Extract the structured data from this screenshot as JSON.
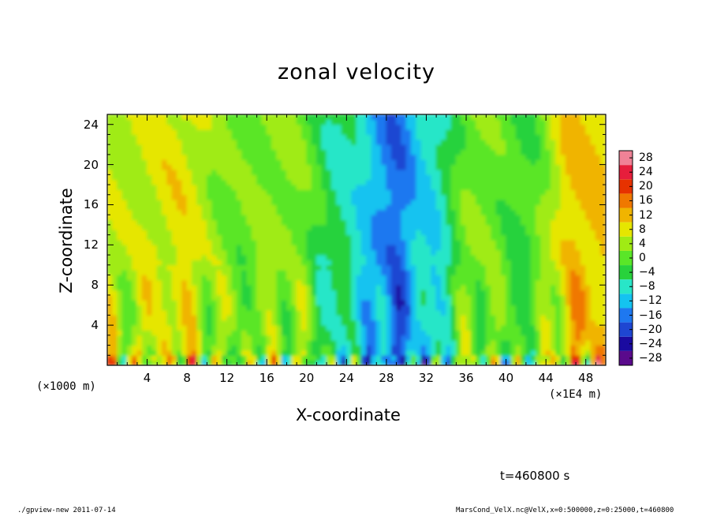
{
  "chart_data": {
    "type": "heatmap",
    "title": "zonal velocity",
    "xlabel": "X-coordinate",
    "ylabel": "Z-coordinate",
    "x_unit_left": "(×1000 m)",
    "x_unit_right": "(×1E4 m)",
    "xlim": [
      0,
      50
    ],
    "ylim": [
      0,
      25
    ],
    "x_ticks": [
      "4",
      "8",
      "12",
      "16",
      "20",
      "24",
      "28",
      "32",
      "36",
      "40",
      "44",
      "48"
    ],
    "y_ticks": [
      "4",
      "8",
      "12",
      "16",
      "20",
      "24"
    ],
    "colorbar": {
      "range": [
        -30,
        30
      ],
      "step": 4,
      "labels": [
        "28",
        "24",
        "20",
        "16",
        "12",
        "8",
        "4",
        "0",
        "−4",
        "−8",
        "−12",
        "−16",
        "−20",
        "−24",
        "−28"
      ]
    },
    "annotation": "t=460800 s",
    "vertical_profile_mean": [
      {
        "x": 2,
        "value": 5
      },
      {
        "x": 7,
        "value": 8
      },
      {
        "x": 13,
        "value": 1
      },
      {
        "x": 18,
        "value": 3
      },
      {
        "x": 24,
        "value": -7
      },
      {
        "x": 29,
        "value": -17
      },
      {
        "x": 32,
        "value": -10
      },
      {
        "x": 37,
        "value": 2
      },
      {
        "x": 42,
        "value": -2
      },
      {
        "x": 47,
        "value": 11
      }
    ]
  },
  "footer": {
    "left": "./gpview-new   2011-07-14",
    "right": "MarsCond_VelX.nc@VelX,x=0:500000,z=0:25000,t=460800"
  },
  "colors": {
    "scale": [
      "#5a0a8c",
      "#1a0aa0",
      "#1e46d2",
      "#1e78f0",
      "#14c3f0",
      "#28e6c8",
      "#28d23c",
      "#5ae628",
      "#a0eb14",
      "#e6e600",
      "#f0b400",
      "#f07800",
      "#e63200",
      "#e61e3c",
      "#f08296"
    ]
  }
}
